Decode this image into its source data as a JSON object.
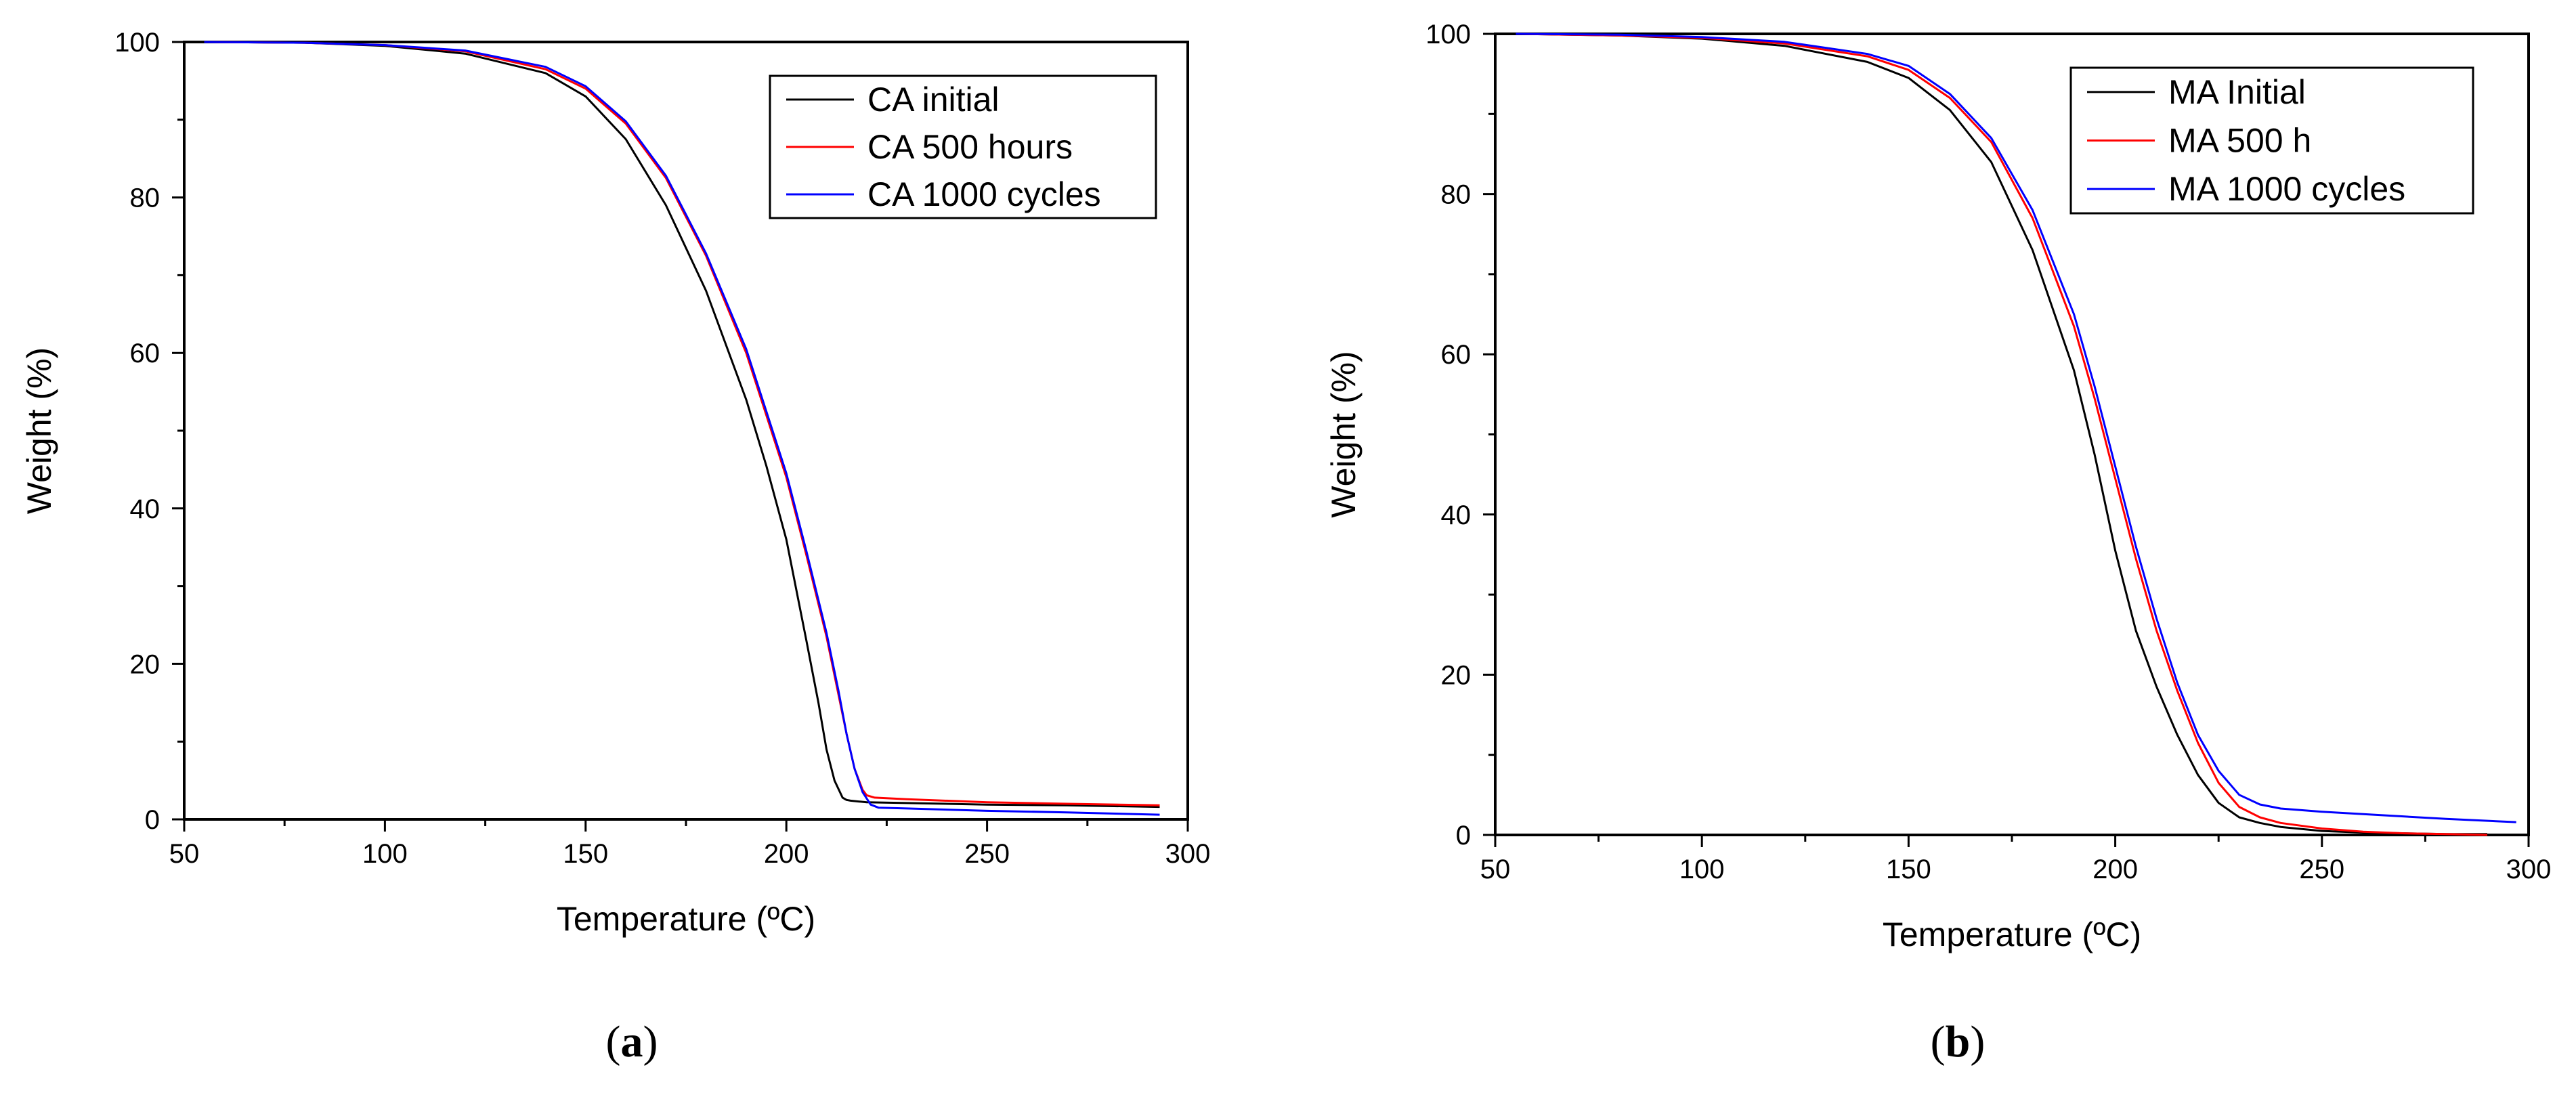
{
  "chart_data": [
    {
      "type": "line",
      "caption": "a",
      "xlabel": "Temperature (ºC)",
      "ylabel": "Weight (%)",
      "xlim": [
        50,
        300
      ],
      "ylim": [
        0,
        100
      ],
      "xticks": [
        50,
        100,
        150,
        200,
        250,
        300
      ],
      "yticks": [
        0,
        20,
        40,
        60,
        80,
        100
      ],
      "legend_position": "top-right",
      "series": [
        {
          "name": "CA initial",
          "color": "#000000",
          "x": [
            55,
            80,
            100,
            120,
            140,
            150,
            160,
            170,
            180,
            190,
            195,
            200,
            205,
            208,
            210,
            212,
            214,
            215,
            216,
            218,
            220,
            230,
            250,
            270,
            293
          ],
          "y": [
            100,
            99.9,
            99.5,
            98.5,
            96,
            93,
            87.5,
            79,
            68,
            54,
            45.5,
            36,
            23,
            15,
            9,
            5,
            2.8,
            2.5,
            2.4,
            2.3,
            2.2,
            2.1,
            1.9,
            1.8,
            1.6
          ]
        },
        {
          "name": "CA 500 hours",
          "color": "#ff0000",
          "x": [
            55,
            80,
            100,
            120,
            140,
            150,
            160,
            170,
            180,
            190,
            195,
            200,
            205,
            210,
            213,
            215,
            217,
            219,
            220,
            222,
            230,
            250,
            270,
            293
          ],
          "y": [
            100,
            99.9,
            99.6,
            98.8,
            96.5,
            94,
            89.5,
            82.5,
            72.5,
            60,
            52,
            44,
            34,
            23.5,
            16,
            11,
            6.5,
            3.8,
            3.1,
            2.8,
            2.6,
            2.2,
            2,
            1.8
          ]
        },
        {
          "name": "CA 1000 cycles",
          "color": "#0000ff",
          "x": [
            55,
            80,
            100,
            120,
            140,
            150,
            160,
            170,
            180,
            190,
            195,
            200,
            205,
            210,
            213,
            215,
            217,
            219,
            221,
            223,
            230,
            250,
            270,
            293
          ],
          "y": [
            100,
            99.9,
            99.6,
            98.9,
            96.8,
            94.3,
            89.8,
            82.8,
            72.8,
            60.5,
            52.5,
            44.5,
            34.5,
            24,
            16.5,
            11,
            6.5,
            3.5,
            1.9,
            1.5,
            1.4,
            1.1,
            0.9,
            0.6
          ]
        }
      ]
    },
    {
      "type": "line",
      "caption": "b",
      "xlabel": "Temperature (ºC)",
      "ylabel": "Weight (%)",
      "xlim": [
        50,
        300
      ],
      "ylim": [
        0,
        100
      ],
      "xticks": [
        50,
        100,
        150,
        200,
        250,
        300
      ],
      "yticks": [
        0,
        20,
        40,
        60,
        80,
        100
      ],
      "legend_position": "top-right",
      "series": [
        {
          "name": "MA Initial",
          "color": "#000000",
          "x": [
            55,
            80,
            100,
            120,
            140,
            150,
            160,
            170,
            180,
            190,
            195,
            200,
            205,
            210,
            215,
            220,
            225,
            230,
            235,
            240,
            250,
            260,
            270,
            280,
            290
          ],
          "y": [
            100,
            99.8,
            99.4,
            98.5,
            96.5,
            94.5,
            90.5,
            84,
            73,
            58,
            47.5,
            35.5,
            25.5,
            18.5,
            12.5,
            7.5,
            4,
            2.2,
            1.5,
            1,
            0.5,
            0.3,
            0.2,
            0.1,
            0.1
          ]
        },
        {
          "name": "MA 500 h",
          "color": "#ff0000",
          "x": [
            55,
            80,
            100,
            120,
            140,
            150,
            160,
            170,
            180,
            190,
            195,
            200,
            205,
            210,
            215,
            220,
            225,
            230,
            235,
            240,
            250,
            260,
            270,
            280,
            290
          ],
          "y": [
            100,
            99.8,
            99.5,
            98.8,
            97.2,
            95.5,
            92,
            86.5,
            77,
            63.5,
            54.5,
            44.5,
            34.5,
            25.5,
            18,
            11.5,
            6.5,
            3.5,
            2.2,
            1.5,
            0.8,
            0.4,
            0.2,
            0.1,
            0
          ]
        },
        {
          "name": "MA 1000 cycles",
          "color": "#0000ff",
          "x": [
            55,
            80,
            100,
            120,
            140,
            150,
            160,
            170,
            180,
            190,
            195,
            200,
            205,
            210,
            215,
            220,
            225,
            230,
            235,
            240,
            250,
            260,
            270,
            280,
            297
          ],
          "y": [
            100,
            99.9,
            99.6,
            99,
            97.5,
            96,
            92.5,
            87,
            78,
            65,
            56,
            46,
            36,
            27,
            19,
            12.5,
            8,
            5,
            3.8,
            3.3,
            2.9,
            2.6,
            2.3,
            2,
            1.6
          ]
        }
      ]
    }
  ]
}
